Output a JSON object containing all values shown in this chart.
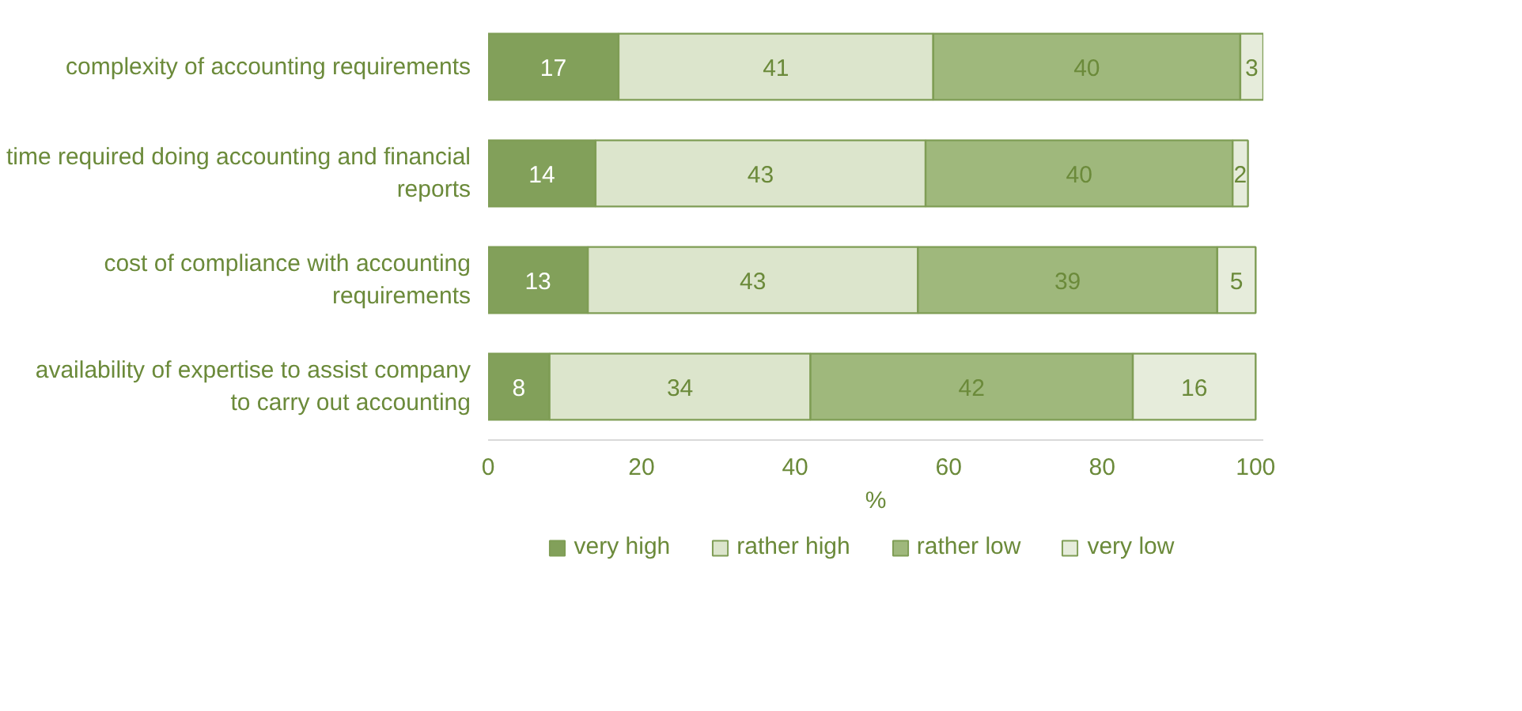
{
  "chart_data": {
    "type": "bar",
    "orientation": "horizontal",
    "stacked": true,
    "categories": [
      "complexity of accounting requirements",
      "time required doing accounting and financial reports",
      "cost of compliance with accounting requirements",
      "availability of expertise to assist company to carry out accounting"
    ],
    "series": [
      {
        "name": "very high",
        "color": "#82a05a",
        "values": [
          17,
          14,
          13,
          8
        ]
      },
      {
        "name": "rather high",
        "color": "#dce5cc",
        "values": [
          41,
          43,
          43,
          34
        ]
      },
      {
        "name": "rather low",
        "color": "#9fb87c",
        "values": [
          40,
          40,
          39,
          42
        ]
      },
      {
        "name": "very low",
        "color": "#e6ecdb",
        "values": [
          3,
          2,
          5,
          16
        ]
      }
    ],
    "xlabel": "%",
    "xlim": [
      0,
      101
    ],
    "xticks": [
      0,
      20,
      40,
      60,
      80,
      100
    ],
    "data_labels": true,
    "legend": "bottom",
    "grid": false
  }
}
